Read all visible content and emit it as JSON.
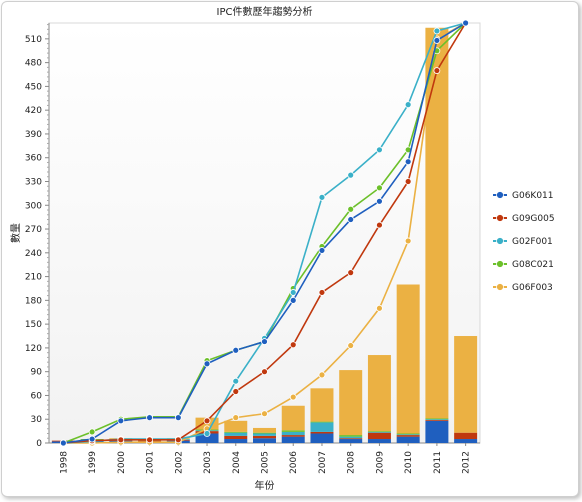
{
  "chart_data": {
    "type": "bar+line",
    "title": "IPC件數歷年趨勢分析",
    "xlabel": "年份",
    "ylabel": "數量",
    "ylim": [
      0,
      530
    ],
    "yticks": [
      0,
      30,
      60,
      90,
      120,
      150,
      180,
      210,
      240,
      270,
      300,
      330,
      360,
      390,
      420,
      450,
      480,
      510
    ],
    "categories": [
      "1998",
      "1999",
      "2000",
      "2001",
      "2002",
      "2003",
      "2004",
      "2005",
      "2006",
      "2007",
      "2008",
      "2009",
      "2010",
      "2011",
      "2012"
    ],
    "legend_position": "right",
    "series": [
      {
        "name": "G06K011",
        "color": "#1f5fbf",
        "line_values": [
          0,
          5,
          28,
          32,
          32,
          100,
          117,
          128,
          180,
          243,
          282,
          305,
          355,
          508,
          530
        ],
        "bar_values": [
          2,
          3,
          3,
          2,
          3,
          12,
          5,
          6,
          8,
          12,
          5,
          5,
          8,
          28,
          5
        ]
      },
      {
        "name": "G09G005",
        "color": "#c0380e",
        "line_values": [
          0,
          3,
          4,
          4,
          4,
          28,
          65,
          90,
          124,
          190,
          215,
          275,
          330,
          470,
          530
        ],
        "bar_values": [
          1,
          1,
          1,
          1,
          1,
          3,
          4,
          3,
          2,
          2,
          1,
          8,
          2,
          1,
          8
        ]
      },
      {
        "name": "G02F001",
        "color": "#3ab0c8",
        "line_values": [
          0,
          2,
          5,
          5,
          5,
          12,
          78,
          132,
          190,
          310,
          338,
          370,
          427,
          520,
          530
        ],
        "bar_values": [
          0,
          0,
          0,
          0,
          1,
          1,
          4,
          3,
          4,
          12,
          2,
          1,
          1,
          1,
          0
        ]
      },
      {
        "name": "G08C021",
        "color": "#6cc02a",
        "line_values": [
          0,
          14,
          30,
          33,
          33,
          104,
          117,
          128,
          195,
          248,
          295,
          322,
          370,
          495,
          530
        ],
        "bar_values": [
          0,
          1,
          1,
          1,
          0,
          1,
          1,
          1,
          2,
          1,
          2,
          1,
          1,
          1,
          0
        ]
      },
      {
        "name": "G06F003",
        "color": "#ebb143",
        "line_values": [
          0,
          0,
          1,
          1,
          1,
          18,
          32,
          37,
          58,
          86,
          123,
          170,
          255,
          510,
          530
        ],
        "bar_values": [
          0,
          0,
          1,
          1,
          1,
          15,
          14,
          6,
          31,
          42,
          82,
          96,
          188,
          493,
          122
        ]
      }
    ]
  }
}
